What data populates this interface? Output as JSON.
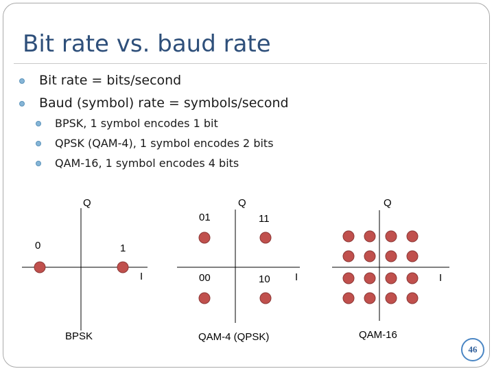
{
  "slide": {
    "title": "Bit rate vs. baud rate",
    "page_number": "46"
  },
  "bullets": [
    {
      "text": "Bit rate = bits/second",
      "level": 1
    },
    {
      "text": "Baud (symbol) rate = symbols/second",
      "level": 1
    },
    {
      "text": "BPSK, 1 symbol encodes 1 bit",
      "level": 2
    },
    {
      "text": "QPSK (QAM-4), 1 symbol encodes 2 bits",
      "level": 2
    },
    {
      "text": "QAM-16, 1 symbol encodes 4 bits",
      "level": 2
    }
  ],
  "diagrams": {
    "bpsk": {
      "caption": "BPSK",
      "q_label": "Q",
      "i_label": "I",
      "point_labels": [
        "0",
        "1"
      ]
    },
    "qpsk": {
      "caption": "QAM-4 (QPSK)",
      "q_label": "Q",
      "i_label": "I",
      "point_labels": [
        "01",
        "11",
        "00",
        "10"
      ]
    },
    "qam16": {
      "caption": "QAM-16",
      "q_label": "Q",
      "i_label": "I"
    }
  },
  "colors": {
    "point_fill": "#c0504d",
    "point_stroke": "#8c3836",
    "axis": "#000000",
    "title": "#2e4f7a",
    "bullet": "#86b5d6"
  }
}
